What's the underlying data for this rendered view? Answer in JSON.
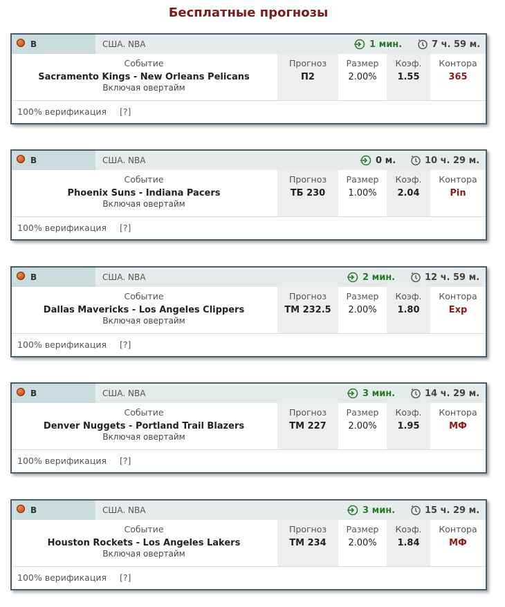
{
  "page": {
    "title": "Бесплатные прогнозы"
  },
  "labels": {
    "event": "Событие",
    "prediction": "Прогноз",
    "size": "Размер",
    "odds": "Коэф.",
    "bookmaker": "Контора",
    "overtime": "Включая овертайм",
    "verification": "100% верификация",
    "help": "[?]"
  },
  "colors": {
    "title": "#7b1c1c",
    "border": "#4a5d6b",
    "header_bg": "#e6ecec",
    "sport_bg": "#cbdcde",
    "timer_green": "#2a7a2a",
    "bookmaker": "#8b1a1a"
  },
  "cards": [
    {
      "sport": "В",
      "league": "США. NBA",
      "since": "1 мин.",
      "until": "7 ч. 59 м.",
      "event": "Sacramento Kings - New Orleans Pelicans",
      "prediction": "П2",
      "size": "2.00%",
      "odds": "1.55",
      "bookmaker": "365"
    },
    {
      "sport": "В",
      "league": "США. NBA",
      "since": "0 м.",
      "until": "10 ч. 29 м.",
      "event": "Phoenix Suns - Indiana Pacers",
      "prediction": "ТБ 230",
      "size": "1.00%",
      "odds": "2.04",
      "bookmaker": "Pin"
    },
    {
      "sport": "В",
      "league": "США. NBA",
      "since": "2 мин.",
      "until": "12 ч. 59 м.",
      "event": "Dallas Mavericks - Los Angeles Clippers",
      "prediction": "ТМ 232.5",
      "size": "2.00%",
      "odds": "1.80",
      "bookmaker": "Exp"
    },
    {
      "sport": "В",
      "league": "США. NBA",
      "since": "3 мин.",
      "until": "14 ч. 29 м.",
      "event": "Denver Nuggets - Portland Trail Blazers",
      "prediction": "ТМ 227",
      "size": "2.00%",
      "odds": "1.95",
      "bookmaker": "МФ"
    },
    {
      "sport": "В",
      "league": "США. NBA",
      "since": "3 мин.",
      "until": "15 ч. 29 м.",
      "event": "Houston Rockets - Los Angeles Lakers",
      "prediction": "ТМ 234",
      "size": "2.00%",
      "odds": "1.84",
      "bookmaker": "МФ"
    }
  ]
}
